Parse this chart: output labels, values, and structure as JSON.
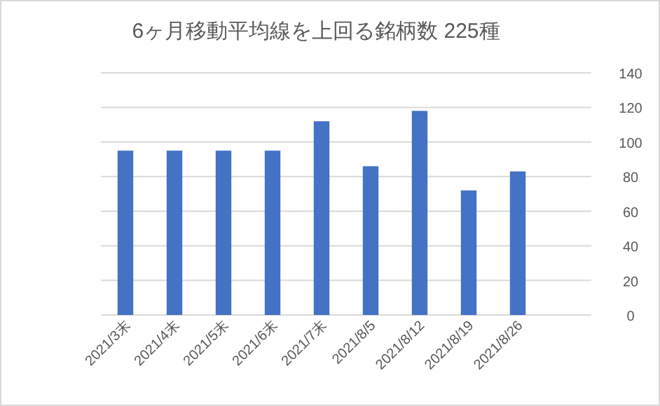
{
  "chart_data": {
    "type": "bar",
    "title": "6ヶ月移動平均線を上回る銘柄数 225種",
    "categories": [
      "2021/3末",
      "2021/4末",
      "2021/5末",
      "2021/6末",
      "2021/7末",
      "2021/8/5",
      "2021/8/12",
      "2021/8/19",
      "2021/8/26",
      null
    ],
    "values": [
      95,
      95,
      95,
      95,
      112,
      86,
      118,
      72,
      83,
      null
    ],
    "color": "#4472c4",
    "ylim": [
      0,
      140
    ],
    "yticks": [
      0,
      20,
      40,
      60,
      80,
      100,
      120,
      140
    ],
    "grid": "y"
  }
}
